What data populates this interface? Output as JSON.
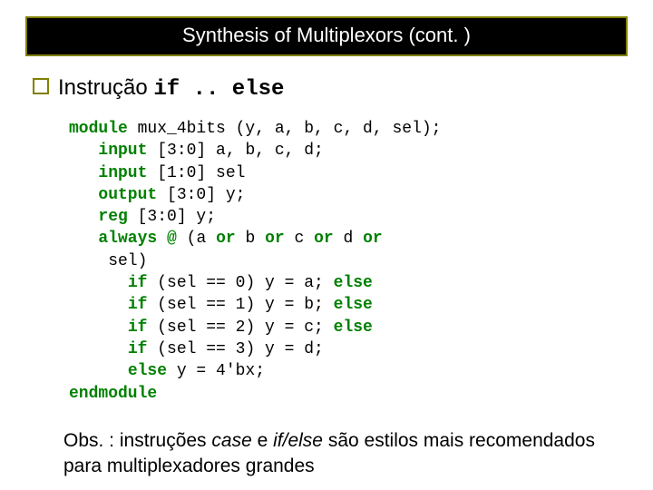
{
  "title": "Synthesis of Multiplexors (cont. )",
  "section_label_plain": "Instrução ",
  "section_label_mono": "if .. else",
  "code": {
    "kw_module": "module",
    "l1_rest": " mux_4bits (y, a, b, c, d, sel);",
    "kw_input": "input",
    "l2_rest": " [3:0] a, b, c, d;",
    "l3_rest": " [1:0] sel",
    "kw_output": "output",
    "l4_rest": " [3:0] y;",
    "kw_reg": "reg",
    "l5_rest": " [3:0] y;",
    "kw_always": "always",
    "kw_at": "@",
    "kw_or": "or",
    "l6_a": " (a ",
    "l6_b": " b ",
    "l6_c": " c ",
    "l6_d": " d ",
    "l7": "    sel)",
    "kw_if": "if",
    "kw_else": "else",
    "if0": " (sel == 0) y = a; ",
    "if1": " (sel == 1) y = b; ",
    "if2": " (sel == 2) y = c; ",
    "if3": " (sel == 3) y = d;",
    "else_rest": " y = 4'bx;",
    "kw_endmodule": "endmodule"
  },
  "note_pre": "Obs. : instruções ",
  "note_case": "case",
  "note_mid": " e ",
  "note_ifelse": "if/else",
  "note_post": " são estilos mais recomendados para multiplexadores grandes",
  "colors": {
    "keyword": "#008000",
    "title_bg": "#000000",
    "title_border": "#808000",
    "title_text": "#ffffff",
    "bullet_border": "#808000"
  },
  "fonts": {
    "title_size_pt": 17,
    "section_size_pt": 18,
    "code_size_pt": 14,
    "note_size_pt": 16
  }
}
